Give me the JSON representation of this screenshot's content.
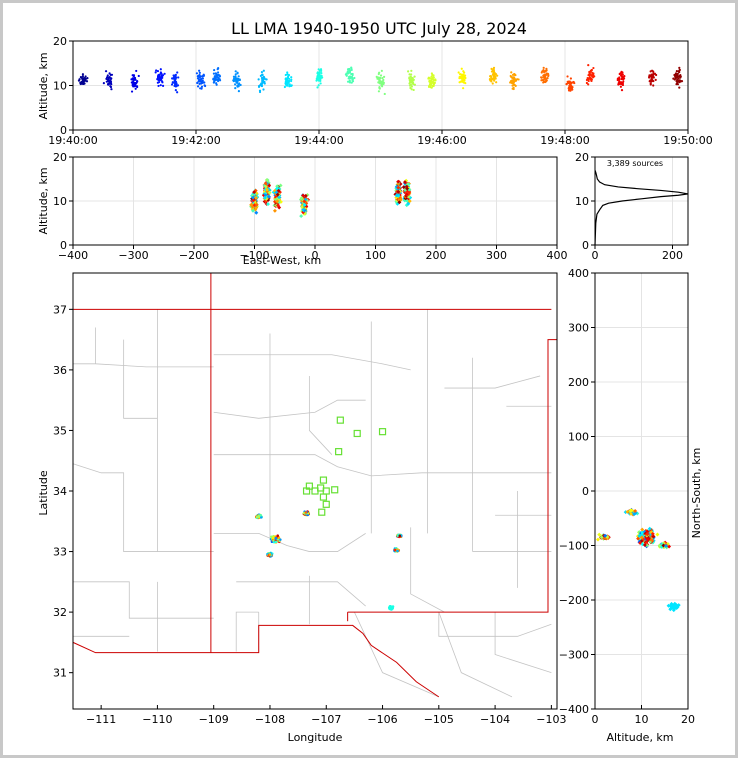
{
  "title": "LL LMA 1940-1950 UTC July 28, 2024",
  "source_count_label": "3,389 sources",
  "chart_data": [
    {
      "panel": "altitude-time",
      "type": "scatter",
      "ylabel": "Altitude, km",
      "xlim": [
        "19:40:00",
        "19:50:00"
      ],
      "ylim": [
        0,
        20
      ],
      "xticks": [
        "19:40:00",
        "19:42:00",
        "19:44:00",
        "19:46:00",
        "19:48:00",
        "19:50:00"
      ],
      "yticks": [
        "0",
        "10",
        "20"
      ],
      "color_scale": "jet (blue = 19:40, dark red = 19:50)",
      "clusters": [
        {
          "t": "19:40:10",
          "alt": 11
        },
        {
          "t": "19:40:35",
          "alt": 11
        },
        {
          "t": "19:41:00",
          "alt": 11
        },
        {
          "t": "19:41:25",
          "alt": 12
        },
        {
          "t": "19:41:40",
          "alt": 11
        },
        {
          "t": "19:42:05",
          "alt": 11
        },
        {
          "t": "19:42:20",
          "alt": 12
        },
        {
          "t": "19:42:40",
          "alt": 11
        },
        {
          "t": "19:43:05",
          "alt": 11
        },
        {
          "t": "19:43:30",
          "alt": 11
        },
        {
          "t": "19:44:00",
          "alt": 12
        },
        {
          "t": "19:44:30",
          "alt": 12
        },
        {
          "t": "19:45:00",
          "alt": 11
        },
        {
          "t": "19:45:30",
          "alt": 11
        },
        {
          "t": "19:45:50",
          "alt": 11
        },
        {
          "t": "19:46:20",
          "alt": 12
        },
        {
          "t": "19:46:50",
          "alt": 12
        },
        {
          "t": "19:47:10",
          "alt": 11
        },
        {
          "t": "19:47:40",
          "alt": 12
        },
        {
          "t": "19:48:05",
          "alt": 10
        },
        {
          "t": "19:48:25",
          "alt": 12
        },
        {
          "t": "19:48:55",
          "alt": 11
        },
        {
          "t": "19:49:25",
          "alt": 12
        },
        {
          "t": "19:49:50",
          "alt": 12
        }
      ]
    },
    {
      "panel": "ew-altitude",
      "type": "scatter",
      "xlabel": "East-West, km",
      "ylabel": "Altitude, km",
      "xlim": [
        -400,
        400
      ],
      "ylim": [
        0,
        20
      ],
      "xticks": [
        "−400",
        "−300",
        "−200",
        "−100",
        "0",
        "100",
        "200",
        "300",
        "400"
      ],
      "yticks": [
        "0",
        "10",
        "20"
      ],
      "clusters": [
        {
          "x": -100,
          "alt": 10
        },
        {
          "x": -80,
          "alt": 12
        },
        {
          "x": -62,
          "alt": 11
        },
        {
          "x": -18,
          "alt": 9
        },
        {
          "x": 138,
          "alt": 12
        },
        {
          "x": 152,
          "alt": 12
        }
      ]
    },
    {
      "panel": "altitude-histogram",
      "type": "line",
      "xlim": [
        0,
        240
      ],
      "ylim": [
        0,
        20
      ],
      "xticks": [
        "0",
        "200"
      ],
      "yticks": [
        "0",
        "10",
        "20"
      ],
      "series": [
        {
          "points": [
            [
              0,
              0
            ],
            [
              2,
              5
            ],
            [
              5,
              7
            ],
            [
              12,
              8
            ],
            [
              20,
              9
            ],
            [
              35,
              9.5
            ],
            [
              70,
              10
            ],
            [
              120,
              10.5
            ],
            [
              170,
              11
            ],
            [
              215,
              11.3
            ],
            [
              240,
              11.6
            ],
            [
              215,
              12
            ],
            [
              170,
              12.4
            ],
            [
              110,
              12.8
            ],
            [
              60,
              13.2
            ],
            [
              25,
              13.7
            ],
            [
              12,
              14.3
            ],
            [
              6,
              15
            ],
            [
              4,
              15.8
            ],
            [
              2,
              16.5
            ],
            [
              0,
              17
            ]
          ]
        }
      ]
    },
    {
      "panel": "plan-view-map",
      "type": "scatter",
      "xlabel": "Longitude",
      "ylabel": "Latitude",
      "xlim": [
        -111.5,
        -102.9
      ],
      "ylim": [
        30.4,
        37.6
      ],
      "xticks": [
        "−111",
        "−110",
        "−109",
        "−108",
        "−107",
        "−106",
        "−105",
        "−104",
        "−103"
      ],
      "yticks": [
        "31",
        "32",
        "33",
        "34",
        "35",
        "36",
        "37"
      ],
      "stations": [
        {
          "lon": -106.75,
          "lat": 35.17
        },
        {
          "lon": -106.45,
          "lat": 34.95
        },
        {
          "lon": -106.0,
          "lat": 34.98
        },
        {
          "lon": -106.78,
          "lat": 34.65
        },
        {
          "lon": -107.05,
          "lat": 34.18
        },
        {
          "lon": -107.3,
          "lat": 34.08
        },
        {
          "lon": -107.1,
          "lat": 34.05
        },
        {
          "lon": -106.85,
          "lat": 34.02
        },
        {
          "lon": -107.35,
          "lat": 34.0
        },
        {
          "lon": -107.2,
          "lat": 34.0
        },
        {
          "lon": -107.0,
          "lat": 34.0
        },
        {
          "lon": -107.05,
          "lat": 33.9
        },
        {
          "lon": -107.0,
          "lat": 33.78
        },
        {
          "lon": -107.08,
          "lat": 33.65
        }
      ],
      "clusters": [
        {
          "lon": -108.2,
          "lat": 33.58
        },
        {
          "lon": -107.9,
          "lat": 33.2
        },
        {
          "lon": -108.0,
          "lat": 32.95
        },
        {
          "lon": -107.35,
          "lat": 33.63
        },
        {
          "lon": -105.7,
          "lat": 33.26
        },
        {
          "lon": -105.75,
          "lat": 33.02
        },
        {
          "lon": -105.85,
          "lat": 32.07
        }
      ]
    },
    {
      "panel": "altitude-ns",
      "type": "scatter",
      "xlabel": "Altitude, km",
      "ylabel": "North-South, km",
      "xlim": [
        0,
        20
      ],
      "ylim": [
        -400,
        400
      ],
      "xticks": [
        "0",
        "10",
        "20"
      ],
      "yticks": [
        "−400",
        "−300",
        "−200",
        "−100",
        "0",
        "100",
        "200",
        "300",
        "400"
      ],
      "clusters": [
        {
          "alt": 11,
          "ns": -85
        },
        {
          "alt": 8,
          "ns": -40
        },
        {
          "alt": 2,
          "ns": -85
        },
        {
          "alt": 15,
          "ns": -100
        },
        {
          "alt": 17,
          "ns": -212
        }
      ]
    }
  ]
}
